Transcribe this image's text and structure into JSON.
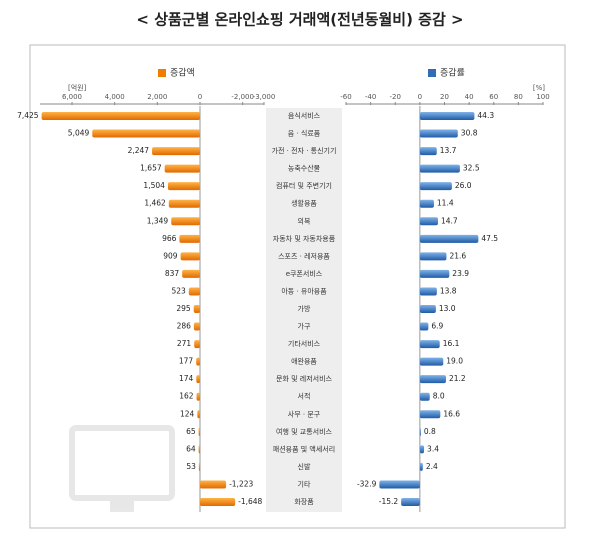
{
  "chart_data": {
    "type": "bar",
    "orientation": "horizontal",
    "title": "< 상품군별 온라인쇼핑 거래액(전년동월비) 증감 >",
    "categories": [
      "음식서비스",
      "음 · 식료품",
      "가전 · 전자 · 통신기기",
      "농축수산물",
      "컴퓨터 및 주변기기",
      "생활용품",
      "의복",
      "자동차 및 자동차용품",
      "스포츠 · 레저용품",
      "e쿠폰서비스",
      "아동 · 유아용품",
      "가방",
      "가구",
      "기타서비스",
      "애완용품",
      "문화 및 레저서비스",
      "서적",
      "사무 · 문구",
      "여행 및 교통서비스",
      "패션용품 및 액세서리",
      "신발",
      "기타",
      "화장품"
    ],
    "series": [
      {
        "name": "증감액",
        "color": "#f07c00",
        "axis": "x",
        "values": [
          7425,
          5049,
          2247,
          1657,
          1504,
          1462,
          1349,
          966,
          909,
          837,
          523,
          295,
          286,
          271,
          177,
          174,
          162,
          124,
          65,
          64,
          53,
          -1223,
          -1648
        ],
        "value_labels": [
          "7,425",
          "5,049",
          "2,247",
          "1,657",
          "1,504",
          "1,462",
          "1,349",
          "966",
          "909",
          "837",
          "523",
          "295",
          "286",
          "271",
          "177",
          "174",
          "162",
          "124",
          "65",
          "64",
          "53",
          "-1,223",
          "-1,648"
        ]
      },
      {
        "name": "증감률",
        "color": "#2f6db5",
        "axis": "x2",
        "values": [
          44.3,
          30.8,
          13.7,
          32.5,
          26.0,
          11.4,
          14.7,
          47.5,
          21.6,
          23.9,
          13.8,
          13.0,
          6.9,
          16.1,
          19.0,
          21.2,
          8.0,
          16.6,
          0.8,
          3.4,
          2.4,
          -32.9,
          -15.2
        ],
        "value_labels": [
          "44.3",
          "30.8",
          "13.7",
          "32.5",
          "26.0",
          "11.4",
          "14.7",
          "47.5",
          "21.6",
          "23.9",
          "13.8",
          "13.0",
          "6.9",
          "16.1",
          "19.0",
          "21.2",
          "8.0",
          "16.6",
          "0.8",
          "3.4",
          "2.4",
          "-32.9",
          "-15.2"
        ]
      }
    ],
    "x_unit": "[억원]",
    "x2_unit": "[%]",
    "xlim": [
      7500,
      -3000
    ],
    "xticks": [
      {
        "value": 6000,
        "label": "6,000"
      },
      {
        "value": 4000,
        "label": "4,000"
      },
      {
        "value": 2000,
        "label": "2,000"
      },
      0,
      {
        "value": -2000,
        "label": "-2,000"
      },
      {
        "value": -3000,
        "label": "-3,000"
      }
    ],
    "x2lim": [
      -60,
      100
    ],
    "x2ticks": [
      -60,
      -40,
      -20,
      0,
      20,
      40,
      60,
      80,
      100
    ]
  }
}
